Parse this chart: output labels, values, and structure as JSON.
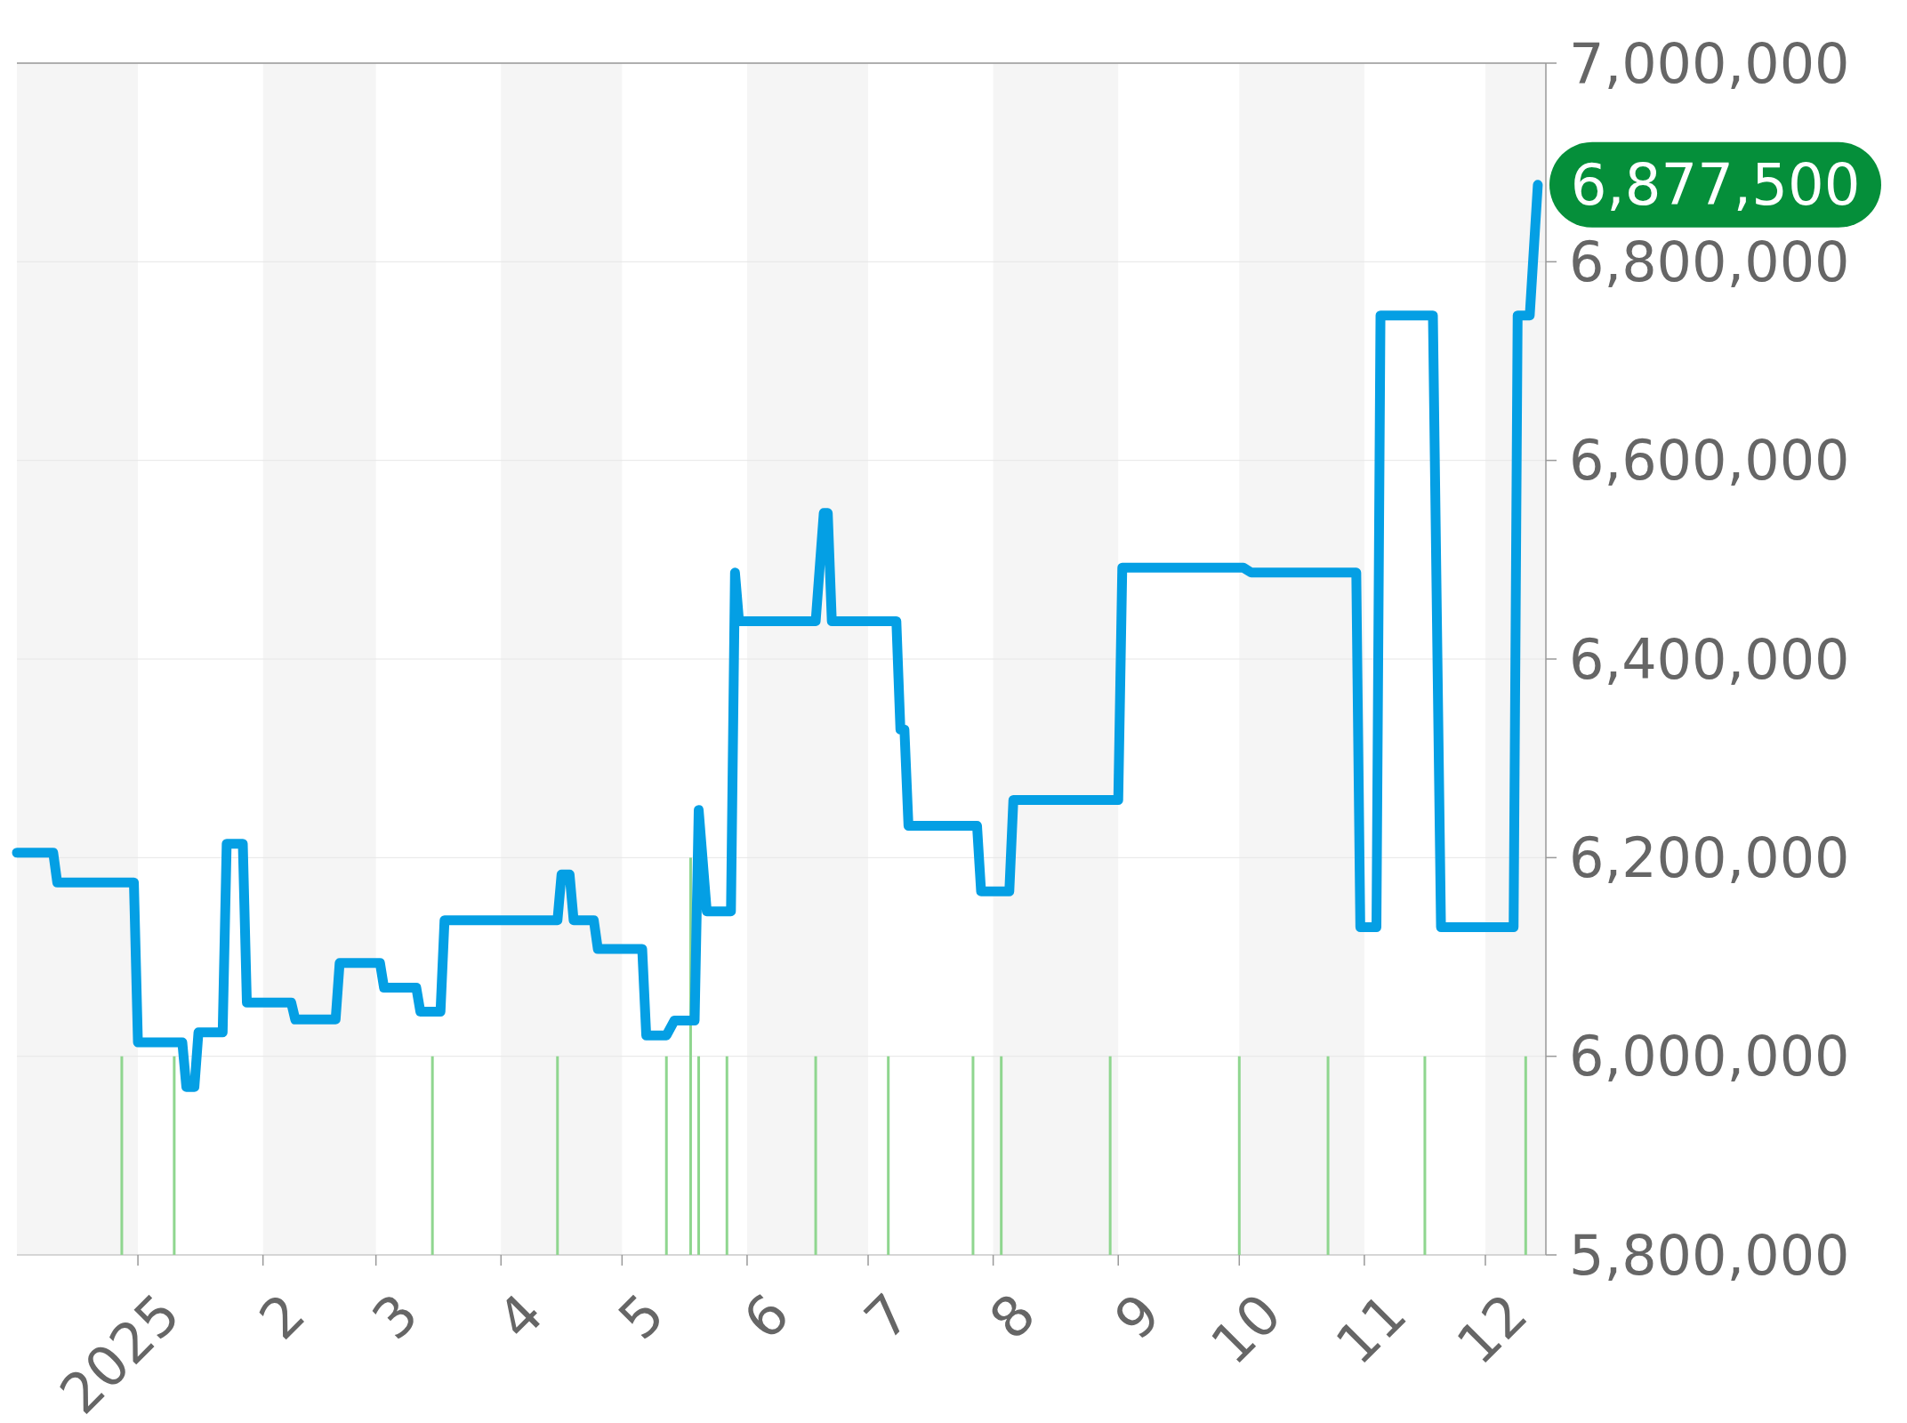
{
  "chart_data": {
    "type": "line",
    "xlim": [
      "2024-12-02",
      "2025-12-16"
    ],
    "ylim": [
      5800000,
      7000000
    ],
    "xticks": [
      {
        "value": "2025-01-01",
        "label": "2025"
      },
      {
        "value": "2025-02-01",
        "label": "2"
      },
      {
        "value": "2025-03-01",
        "label": "3"
      },
      {
        "value": "2025-04-01",
        "label": "4"
      },
      {
        "value": "2025-05-01",
        "label": "5"
      },
      {
        "value": "2025-06-01",
        "label": "6"
      },
      {
        "value": "2025-07-01",
        "label": "7"
      },
      {
        "value": "2025-08-01",
        "label": "8"
      },
      {
        "value": "2025-09-01",
        "label": "9"
      },
      {
        "value": "2025-10-01",
        "label": "10"
      },
      {
        "value": "2025-11-01",
        "label": "11"
      },
      {
        "value": "2025-12-01",
        "label": "12"
      }
    ],
    "yticks": [
      {
        "value": 5800000,
        "label": "5,800,000"
      },
      {
        "value": 6000000,
        "label": "6,000,000"
      },
      {
        "value": 6200000,
        "label": "6,200,000"
      },
      {
        "value": 6400000,
        "label": "6,400,000"
      },
      {
        "value": 6600000,
        "label": "6,600,000"
      },
      {
        "value": 6800000,
        "label": "6,800,000"
      },
      {
        "value": 7000000,
        "label": "7,000,000"
      }
    ],
    "grid": "y",
    "marker": "none",
    "line_style": "solid",
    "bands": [
      {
        "axis": "x",
        "from": "2024-12-02",
        "to": "2025-01-01",
        "color": "#f5f5f5"
      },
      {
        "axis": "x",
        "from": "2025-02-01",
        "to": "2025-03-01",
        "color": "#f5f5f5"
      },
      {
        "axis": "x",
        "from": "2025-04-01",
        "to": "2025-05-01",
        "color": "#f5f5f5"
      },
      {
        "axis": "x",
        "from": "2025-06-01",
        "to": "2025-07-01",
        "color": "#f5f5f5"
      },
      {
        "axis": "x",
        "from": "2025-08-01",
        "to": "2025-09-01",
        "color": "#f5f5f5"
      },
      {
        "axis": "x",
        "from": "2025-10-01",
        "to": "2025-11-01",
        "color": "#f5f5f5"
      },
      {
        "axis": "x",
        "from": "2025-12-01",
        "to": "2025-12-16",
        "color": "#f5f5f5"
      }
    ],
    "annotations": [
      {
        "text": "6,877,500",
        "x": "2025-12-14",
        "y": 6877500
      }
    ],
    "series": [
      {
        "type": "bar",
        "color": "#8fd68f",
        "x": [
          "2024-12-28",
          "2025-01-10",
          "2025-03-15",
          "2025-04-15",
          "2025-05-12",
          "2025-05-18",
          "2025-05-20",
          "2025-05-27",
          "2025-06-18",
          "2025-07-06",
          "2025-07-27",
          "2025-08-03",
          "2025-08-30",
          "2025-10-01",
          "2025-10-23",
          "2025-11-16",
          "2025-12-11"
        ],
        "values": [
          6000000,
          6000000,
          6000000,
          6000000,
          6000000,
          6200000,
          6000000,
          6000000,
          6000000,
          6000000,
          6000000,
          6000000,
          6000000,
          6000000,
          6000000,
          6000000,
          6000000
        ]
      },
      {
        "color": "#049fe4",
        "x": [
          "2024-12-02",
          "2024-12-11",
          "2024-12-12",
          "2024-12-31",
          "2025-01-01",
          "2025-01-12",
          "2025-01-13",
          "2025-01-15",
          "2025-01-16",
          "2025-01-22",
          "2025-01-23",
          "2025-01-27",
          "2025-01-28",
          "2025-02-08",
          "2025-02-09",
          "2025-02-19",
          "2025-02-20",
          "2025-03-02",
          "2025-03-03",
          "2025-03-11",
          "2025-03-12",
          "2025-03-17",
          "2025-03-18",
          "2025-04-15",
          "2025-04-16",
          "2025-04-18",
          "2025-04-19",
          "2025-04-24",
          "2025-04-25",
          "2025-05-06",
          "2025-05-07",
          "2025-05-12",
          "2025-05-14",
          "2025-05-19",
          "2025-05-20",
          "2025-05-22",
          "2025-05-23",
          "2025-05-28",
          "2025-05-29",
          "2025-05-30",
          "2025-06-18",
          "2025-06-20",
          "2025-06-21",
          "2025-06-22",
          "2025-07-06",
          "2025-07-08",
          "2025-07-09",
          "2025-07-10",
          "2025-07-11",
          "2025-07-28",
          "2025-07-29",
          "2025-08-05",
          "2025-08-06",
          "2025-09-01",
          "2025-09-02",
          "2025-10-02",
          "2025-10-04",
          "2025-10-30",
          "2025-10-31",
          "2025-11-04",
          "2025-11-05",
          "2025-11-18",
          "2025-11-20",
          "2025-12-08",
          "2025-12-09",
          "2025-12-12",
          "2025-12-14"
        ],
        "values": [
          6205000,
          6205000,
          6175000,
          6175000,
          6014000,
          6014000,
          5969000,
          5969000,
          6024000,
          6024000,
          6214000,
          6214000,
          6054000,
          6054000,
          6037000,
          6037000,
          6094000,
          6094000,
          6069000,
          6069000,
          6045000,
          6045000,
          6137000,
          6137000,
          6183000,
          6183000,
          6137000,
          6137000,
          6108000,
          6108000,
          6021000,
          6021000,
          6036000,
          6036000,
          6248000,
          6146000,
          6146000,
          6146000,
          6487000,
          6438000,
          6438000,
          6547000,
          6547000,
          6438000,
          6438000,
          6438000,
          6329000,
          6329000,
          6232000,
          6232000,
          6166000,
          6166000,
          6258000,
          6258000,
          6492000,
          6492000,
          6487000,
          6487000,
          6130000,
          6130000,
          6746000,
          6746000,
          6130000,
          6130000,
          6746000,
          6746000,
          6877500
        ]
      }
    ]
  }
}
